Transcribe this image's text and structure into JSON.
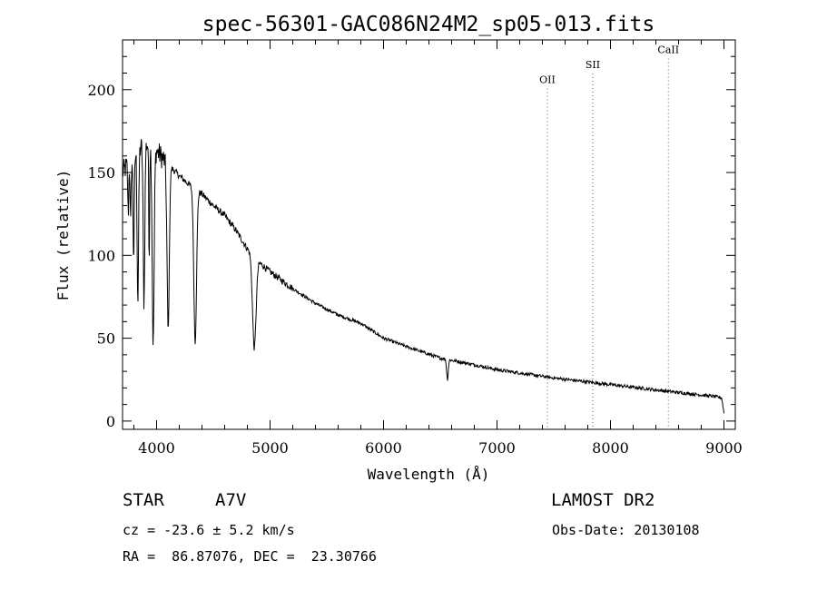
{
  "chart_data": {
    "type": "line",
    "title": "spec-56301-GAC086N24M2_sp05-013.fits",
    "xlabel": "Wavelength (Å)",
    "ylabel": "Flux (relative)",
    "xlim": [
      3700,
      9100
    ],
    "ylim": [
      -5,
      230
    ],
    "xticks": [
      4000,
      5000,
      6000,
      7000,
      8000,
      9000
    ],
    "yticks": [
      0,
      50,
      100,
      150,
      200
    ],
    "grid": false,
    "continuum": [
      [
        3700,
        150
      ],
      [
        3800,
        160
      ],
      [
        3900,
        168
      ],
      [
        4000,
        163
      ],
      [
        4100,
        155
      ],
      [
        4200,
        148
      ],
      [
        4300,
        142
      ],
      [
        4400,
        137
      ],
      [
        4500,
        130
      ],
      [
        4600,
        124
      ],
      [
        4700,
        115
      ],
      [
        4800,
        104
      ],
      [
        4900,
        96
      ],
      [
        5000,
        90
      ],
      [
        5200,
        80
      ],
      [
        5400,
        71
      ],
      [
        5600,
        64
      ],
      [
        5800,
        59
      ],
      [
        6000,
        50
      ],
      [
        6200,
        45
      ],
      [
        6500,
        38
      ],
      [
        6800,
        34
      ],
      [
        7000,
        31
      ],
      [
        7500,
        26
      ],
      [
        8000,
        22
      ],
      [
        8500,
        18
      ],
      [
        8900,
        15
      ],
      [
        8980,
        14
      ],
      [
        9000,
        5
      ]
    ],
    "absorption_lines": [
      {
        "x": 3750,
        "depth": 30,
        "width": 6
      },
      {
        "x": 3771,
        "depth": 40,
        "width": 6
      },
      {
        "x": 3798,
        "depth": 60,
        "width": 8
      },
      {
        "x": 3835,
        "depth": 90,
        "width": 9
      },
      {
        "x": 3889,
        "depth": 95,
        "width": 10
      },
      {
        "x": 3934,
        "depth": 70,
        "width": 5
      },
      {
        "x": 3970,
        "depth": 118,
        "width": 12
      },
      {
        "x": 4102,
        "depth": 100,
        "width": 14
      },
      {
        "x": 4340,
        "depth": 92,
        "width": 17
      },
      {
        "x": 4861,
        "depth": 55,
        "width": 22
      },
      {
        "x": 6563,
        "depth": 12,
        "width": 10
      }
    ],
    "ref_lines": [
      {
        "label": "OII",
        "x": 7444,
        "label_y": 204
      },
      {
        "label": "SII",
        "x": 7844,
        "label_y": 213
      },
      {
        "label": "CaII",
        "x": 8510,
        "label_y": 222
      }
    ]
  },
  "info": {
    "object_class": "STAR",
    "subclass": "A7V",
    "survey": "LAMOST DR2",
    "cz": "cz = -23.6 ± 5.2 km/s",
    "obs_date": "Obs-Date: 20130108",
    "coords": "RA =  86.87076, DEC =  23.30766"
  }
}
